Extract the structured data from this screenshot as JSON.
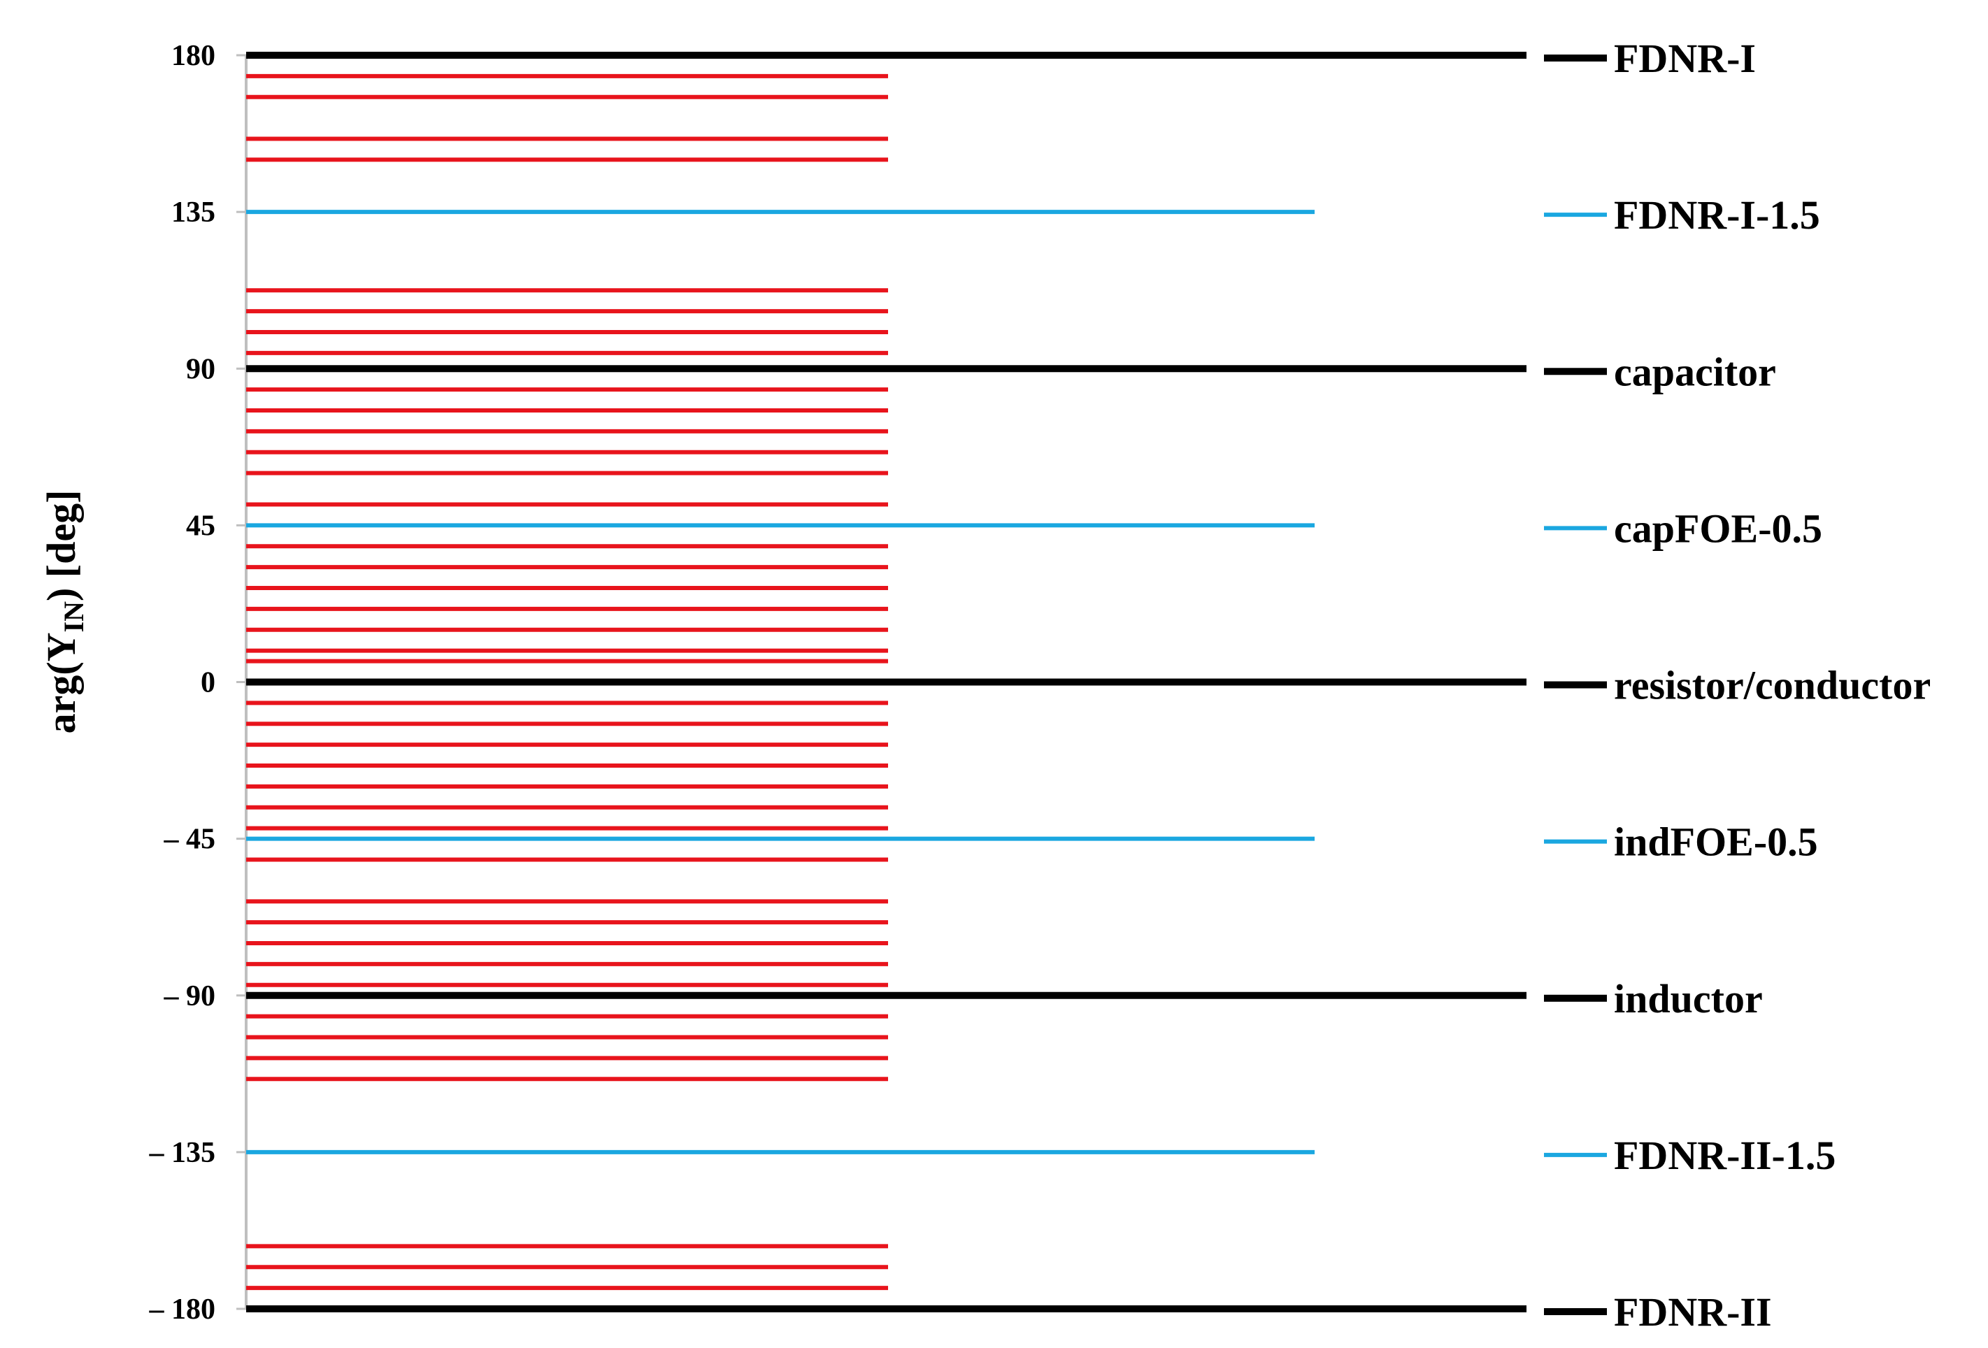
{
  "chart_data": {
    "type": "line",
    "title": "",
    "xlabel": "",
    "ylabel": {
      "main": "arg(Y",
      "sub": "IN",
      "tail": ")  [deg]"
    },
    "ylim": [
      -180,
      180
    ],
    "y_ticks": [
      {
        "value": 180,
        "label": "180"
      },
      {
        "value": 135,
        "label": "135"
      },
      {
        "value": 90,
        "label": "90"
      },
      {
        "value": 45,
        "label": "45"
      },
      {
        "value": 0,
        "label": "0"
      },
      {
        "value": -45,
        "label": "– 45"
      },
      {
        "value": -90,
        "label": "– 90"
      },
      {
        "value": -135,
        "label": "– 135"
      },
      {
        "value": -180,
        "label": "– 180"
      }
    ],
    "grid": false,
    "legend_position": "right",
    "colors": {
      "integer": "#000000",
      "half": "#1aa7e0",
      "other": "#e8141c",
      "axis": "#bfbfbf"
    },
    "series": [
      {
        "name": "FDNR-I",
        "value": 180,
        "kind": "integer"
      },
      {
        "name": "FDNR-I-1.5",
        "value": 135,
        "kind": "half"
      },
      {
        "name": "capacitor",
        "value": 90,
        "kind": "integer"
      },
      {
        "name": "capFOE-0.5",
        "value": 45,
        "kind": "half"
      },
      {
        "name": "resistor/conductor",
        "value": 0,
        "kind": "integer"
      },
      {
        "name": "indFOE-0.5",
        "value": -45,
        "kind": "half"
      },
      {
        "name": "inductor",
        "value": -90,
        "kind": "integer"
      },
      {
        "name": "FDNR-II-1.5",
        "value": -135,
        "kind": "half"
      },
      {
        "name": "FDNR-II",
        "value": -180,
        "kind": "integer"
      }
    ],
    "other_values": [
      174,
      168,
      156,
      150,
      112.5,
      106.5,
      100.5,
      94.5,
      84,
      78,
      72,
      66,
      60,
      51,
      39,
      33,
      27,
      21,
      15,
      9,
      6,
      -6,
      -12,
      -18,
      -24,
      -30,
      -36,
      -42,
      -51,
      -63,
      -69,
      -75,
      -81,
      -87,
      -96,
      -102,
      -108,
      -114,
      -162,
      -168,
      -180,
      -174
    ]
  }
}
